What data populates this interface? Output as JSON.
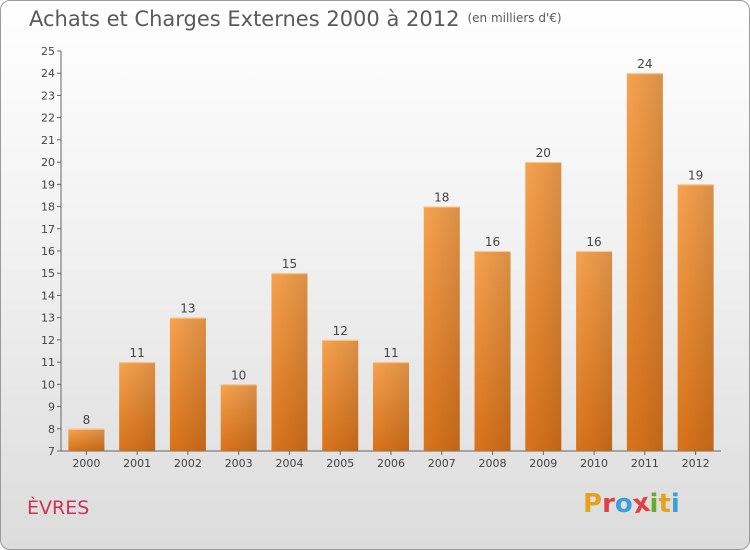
{
  "header": {
    "title": "Achats et Charges Externes 2000 à 2012",
    "unit": "(en milliers d'€)"
  },
  "footer": {
    "commune": "ÈVRES"
  },
  "logo": {
    "letters": [
      "P",
      "r",
      "o",
      "x",
      "i",
      "t",
      "i"
    ],
    "colors": [
      "#e8a020",
      "#e04040",
      "#3aa0d8",
      "#e04040",
      "#6aaa30",
      "#e8a020",
      "#3aa0d8"
    ]
  },
  "chart_data": {
    "type": "bar",
    "title": "Achats et Charges Externes 2000 à 2012",
    "xlabel": "",
    "ylabel": "",
    "categories": [
      "2000",
      "2001",
      "2002",
      "2003",
      "2004",
      "2005",
      "2006",
      "2007",
      "2008",
      "2009",
      "2010",
      "2011",
      "2012"
    ],
    "values": [
      8,
      11,
      13,
      10,
      15,
      12,
      11,
      18,
      16,
      20,
      16,
      24,
      19
    ],
    "ylim": [
      7,
      25
    ],
    "yticks": [
      7,
      8,
      9,
      10,
      11,
      12,
      13,
      14,
      15,
      16,
      17,
      18,
      19,
      20,
      21,
      22,
      23,
      24,
      25
    ],
    "grid": false,
    "bar_color": "#f0902a"
  }
}
